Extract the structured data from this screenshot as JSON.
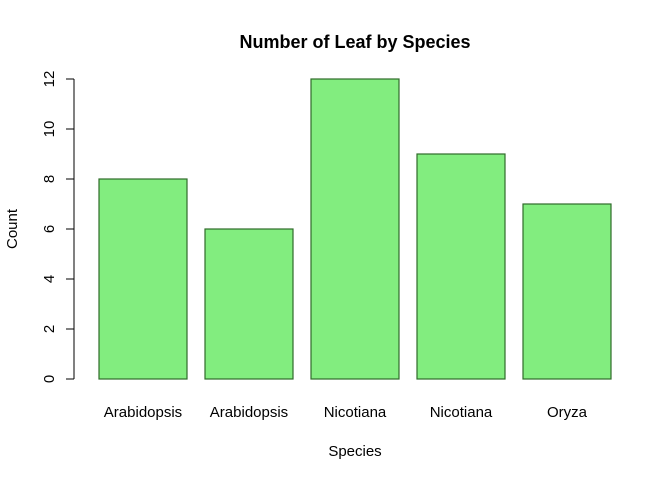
{
  "chart_data": {
    "type": "bar",
    "title": "Number of Leaf by Species",
    "xlabel": "Species",
    "ylabel": "Count",
    "categories": [
      "Arabidopsis",
      "Arabidopsis",
      "Nicotiana",
      "Nicotiana",
      "Oryza"
    ],
    "values": [
      8,
      6,
      12,
      9,
      7
    ],
    "ylim": [
      0,
      12
    ],
    "yticks": [
      0,
      2,
      4,
      6,
      8,
      10,
      12
    ],
    "grid": false,
    "legend": "none",
    "colors": {
      "bar_fill": "#82ed7f",
      "bar_stroke": "#2f6b2a"
    }
  }
}
